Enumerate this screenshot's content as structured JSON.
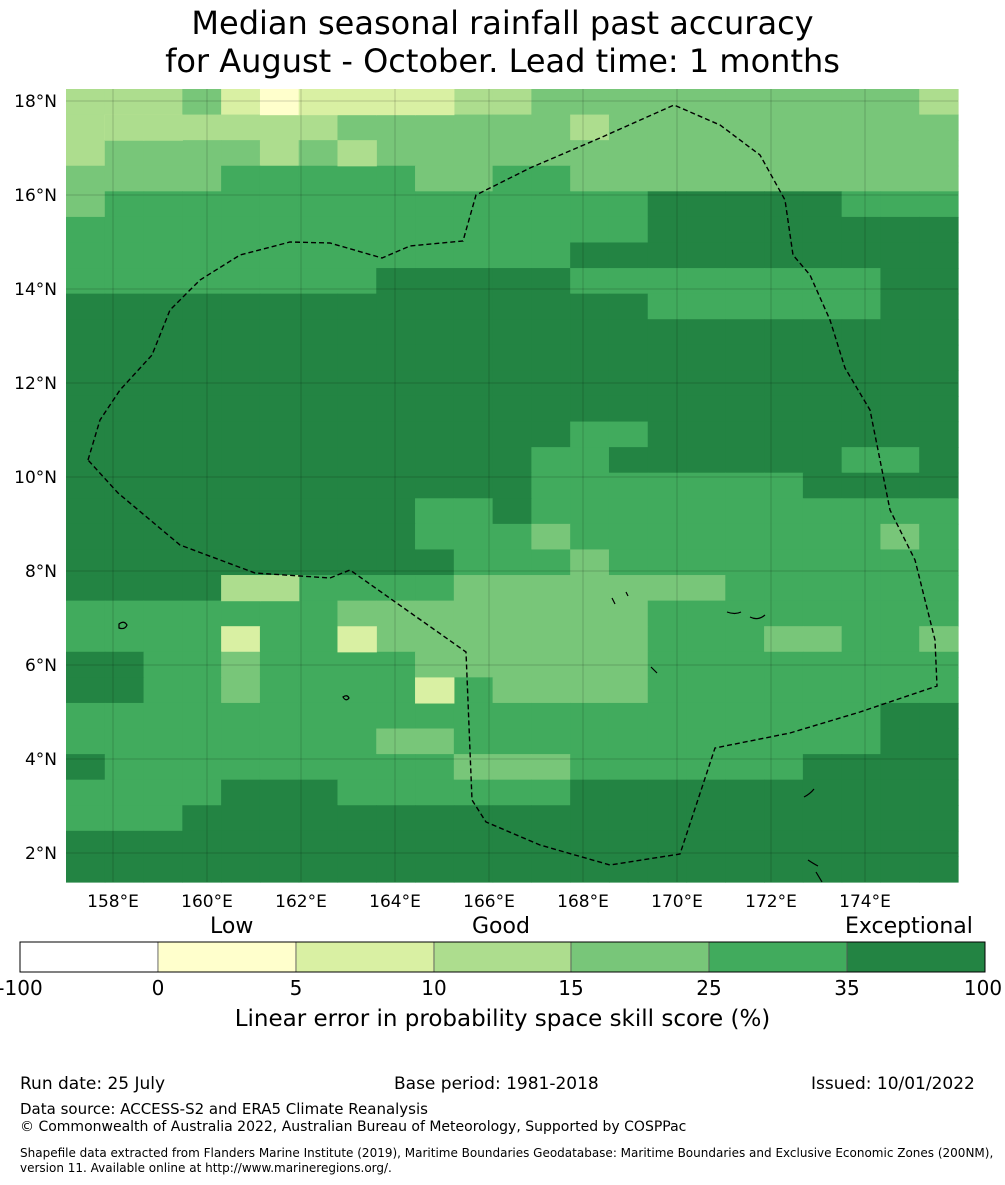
{
  "title_line1": "Median seasonal rainfall past accuracy",
  "title_line2": "for August - October. Lead time: 1 months",
  "map": {
    "lat_labels": [
      "18°N",
      "16°N",
      "14°N",
      "12°N",
      "10°N",
      "8°N",
      "6°N",
      "4°N",
      "2°N"
    ],
    "lon_labels": [
      "158°E",
      "160°E",
      "162°E",
      "164°E",
      "166°E",
      "168°E",
      "170°E",
      "172°E",
      "174°E"
    ],
    "legend_colors": [
      "#ffffff",
      "#ffffcc",
      "#d9f0a3",
      "#addd8e",
      "#78c679",
      "#41ab5d",
      "#238443"
    ]
  },
  "colorbar": {
    "category_low": "Low",
    "category_good": "Good",
    "category_exceptional": "Exceptional",
    "ticks": [
      "-100",
      "0",
      "5",
      "10",
      "15",
      "25",
      "35",
      "100"
    ],
    "title": "Linear error in probability space skill score (%)"
  },
  "footer": {
    "run_date": "Run date: 25 July",
    "base_period": "Base period: 1981-2018",
    "issued": "Issued: 10/01/2022",
    "data_source": "Data source: ACCESS-S2 and ERA5 Climate Reanalysis",
    "copyright": "© Commonwealth of Australia 2022, Australian Bureau of Meteorology, Supported by COSPPac",
    "shapefile_line1": "Shapefile data extracted from Flanders Marine Institute (2019), Maritime Boundaries Geodatabase: Maritime Boundaries and Exclusive Economic Zones (200NM),",
    "shapefile_line2": "version 11. Available online at http://www.marineregions.org/."
  }
}
